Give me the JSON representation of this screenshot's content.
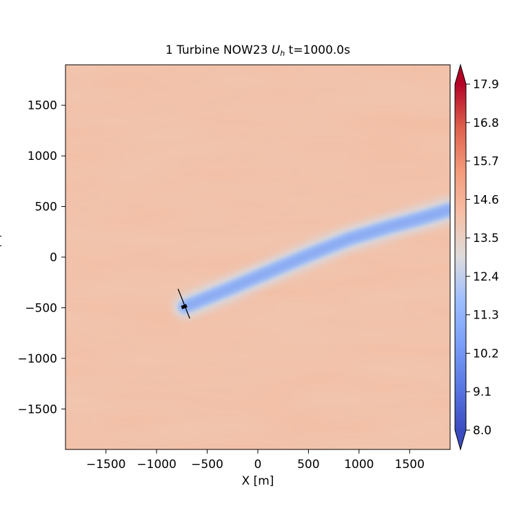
{
  "chart_data": {
    "type": "heatmap",
    "title_prefix": "1 Turbine NOW23 ",
    "title_symbol": "U",
    "title_subscript": "h",
    "title_suffix": " t=1000.0s",
    "xlabel": "X [m]",
    "ylabel_fragment": "[",
    "xlim": [
      -1900,
      1900
    ],
    "ylim": [
      -1900,
      1900
    ],
    "xticks": [
      -1500,
      -1000,
      -500,
      0,
      500,
      1000,
      1500
    ],
    "yticks": [
      -1500,
      -1000,
      -500,
      0,
      500,
      1000,
      1500
    ],
    "xtick_labels": [
      "−1500",
      "−1000",
      "−500",
      "0",
      "500",
      "1000",
      "1500"
    ],
    "ytick_labels": [
      "−1500",
      "−1000",
      "−500",
      "0",
      "500",
      "1000",
      "1500"
    ],
    "colorbar": {
      "range": [
        8.0,
        17.9
      ],
      "ticks": [
        8.0,
        9.1,
        10.2,
        11.3,
        12.4,
        13.5,
        14.6,
        15.7,
        16.8,
        17.9
      ],
      "tick_labels": [
        "8.0",
        "9.1",
        "10.2",
        "11.3",
        "12.4",
        "13.5",
        "14.6",
        "15.7",
        "16.8",
        "17.9"
      ],
      "colormap": "coolwarm",
      "extend": "both"
    },
    "background_value": 14.9,
    "turbine": {
      "x": -720,
      "y": -490
    },
    "wake_centerline": [
      [
        -720,
        -490
      ],
      [
        -300,
        -320
      ],
      [
        100,
        -150
      ],
      [
        500,
        20
      ],
      [
        900,
        180
      ],
      [
        1300,
        300
      ],
      [
        1600,
        380
      ],
      [
        1900,
        470
      ]
    ],
    "wake_min_value": 10.5
  },
  "colors": {
    "background_field": "#f2bea4",
    "wake_core": "#9ab9f5",
    "wake_edge": "#d6dbe4"
  }
}
